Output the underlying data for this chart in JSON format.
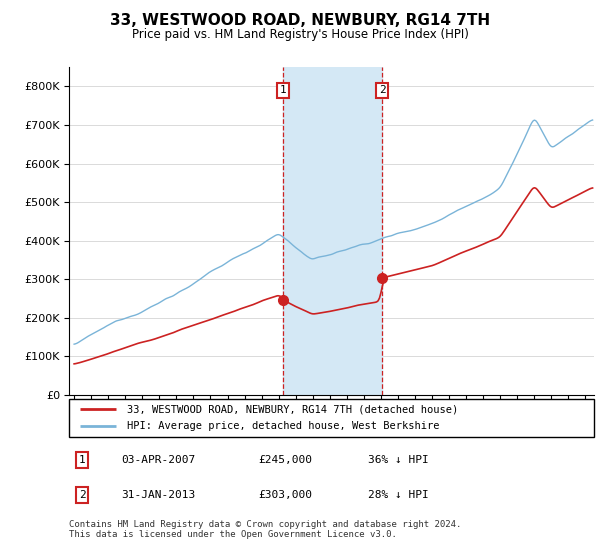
{
  "title": "33, WESTWOOD ROAD, NEWBURY, RG14 7TH",
  "subtitle": "Price paid vs. HM Land Registry's House Price Index (HPI)",
  "hpi_label": "HPI: Average price, detached house, West Berkshire",
  "price_label": "33, WESTWOOD ROAD, NEWBURY, RG14 7TH (detached house)",
  "t1_date": "03-APR-2007",
  "t1_price": "£245,000",
  "t1_note": "36% ↓ HPI",
  "t2_date": "31-JAN-2013",
  "t2_price": "£303,000",
  "t2_note": "28% ↓ HPI",
  "footer": "Contains HM Land Registry data © Crown copyright and database right 2024.\nThis data is licensed under the Open Government Licence v3.0.",
  "hpi_color": "#7ab4d8",
  "price_color": "#cc2222",
  "shaded_color": "#d4e8f5",
  "marker1_x": 2007.25,
  "marker2_x": 2013.08,
  "t1_price_val": 245000,
  "t2_price_val": 303000,
  "ylim_min": 0,
  "ylim_max": 850000,
  "xlim_min": 1994.7,
  "xlim_max": 2025.5
}
